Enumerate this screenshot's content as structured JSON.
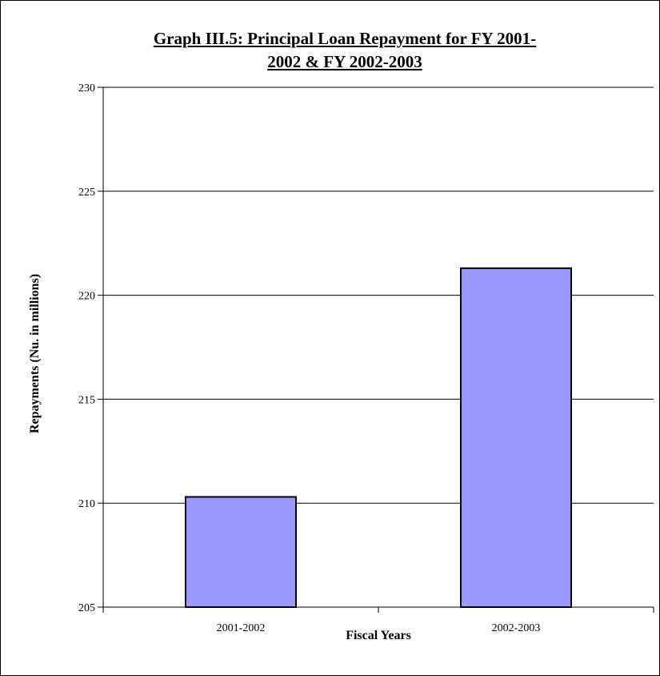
{
  "chart_data": {
    "type": "bar",
    "title_lines": [
      "Graph III.5: Principal Loan Repayment for FY 2001-",
      "2002 & FY 2002-2003"
    ],
    "title": "Graph III.5: Principal Loan Repayment for FY 2001-2002 & FY 2002-2003",
    "xlabel": "Fiscal Years",
    "ylabel": "Repayments (Nu. in millions)",
    "categories": [
      "2001-2002",
      "2002-2003"
    ],
    "values": [
      210.3,
      221.3
    ],
    "ylim": [
      205,
      230
    ],
    "yticks": [
      205,
      210,
      215,
      220,
      225,
      230
    ],
    "grid": true,
    "legend": "none",
    "colors": {
      "bar_fill": "#9999ff",
      "bar_stroke": "#000000",
      "grid": "#000000",
      "axis": "#000000"
    }
  }
}
